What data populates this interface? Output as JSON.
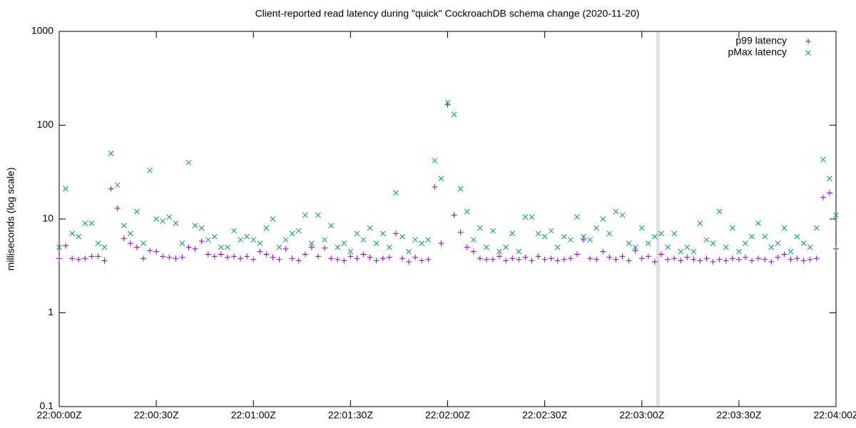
{
  "chart_data": {
    "type": "scatter",
    "title": "Client-reported read latency during \"quick\" CockroachDB schema change (2020-11-20)",
    "ylabel": "milliseconds (log scale)",
    "log_y": true,
    "legend": "top-right",
    "x": [
      0,
      2,
      4,
      6,
      8,
      10,
      12,
      14,
      16,
      18,
      20,
      22,
      24,
      26,
      28,
      30,
      32,
      34,
      36,
      38,
      40,
      42,
      44,
      46,
      48,
      50,
      52,
      54,
      56,
      58,
      60,
      62,
      64,
      66,
      68,
      70,
      72,
      74,
      76,
      78,
      80,
      82,
      84,
      86,
      88,
      90,
      92,
      94,
      96,
      98,
      100,
      102,
      104,
      106,
      108,
      110,
      112,
      114,
      116,
      118,
      120,
      122,
      124,
      126,
      128,
      130,
      132,
      134,
      136,
      138,
      140,
      142,
      144,
      146,
      148,
      150,
      152,
      154,
      156,
      158,
      160,
      162,
      164,
      166,
      168,
      170,
      172,
      174,
      176,
      178,
      180,
      182,
      184,
      186,
      188,
      190,
      192,
      194,
      196,
      198,
      200,
      202,
      204,
      206,
      208,
      210,
      212,
      214,
      216,
      218,
      220,
      222,
      224,
      226,
      228,
      230,
      232,
      234,
      236,
      238,
      240
    ],
    "series": [
      {
        "name": "p99 latency",
        "marker": "plus",
        "color": "#9400d3",
        "values": [
          3.8,
          5.2,
          3.8,
          3.7,
          3.8,
          4.0,
          4.0,
          3.6,
          21,
          13,
          6.2,
          5.5,
          5.0,
          3.8,
          4.6,
          4.5,
          4.0,
          3.9,
          3.8,
          3.9,
          5.0,
          4.8,
          5.8,
          4.2,
          4.0,
          4.2,
          3.9,
          4.0,
          3.8,
          4.0,
          3.7,
          4.5,
          4.2,
          3.9,
          3.7,
          4.8,
          3.8,
          3.6,
          4.2,
          5.0,
          4.0,
          4.9,
          3.8,
          3.7,
          3.6,
          4.0,
          3.8,
          4.2,
          3.9,
          3.6,
          3.8,
          3.9,
          7.0,
          3.8,
          3.5,
          3.9,
          3.6,
          3.7,
          22,
          5.5,
          165,
          11,
          7.2,
          5.0,
          4.5,
          3.8,
          3.7,
          3.7,
          4.0,
          3.6,
          3.8,
          3.7,
          3.9,
          3.6,
          4.0,
          3.7,
          3.8,
          3.6,
          3.7,
          3.8,
          4.2,
          6.0,
          3.8,
          3.7,
          4.5,
          3.9,
          3.7,
          4.0,
          3.6,
          4.6,
          3.8,
          4.0,
          3.5,
          4.2,
          3.7,
          3.8,
          3.6,
          3.9,
          3.7,
          3.6,
          3.8,
          3.5,
          3.7,
          3.6,
          3.8,
          3.7,
          3.9,
          3.6,
          3.8,
          3.7,
          3.5,
          3.9,
          4.2,
          3.7,
          3.8,
          3.6,
          3.7,
          3.8,
          17,
          19,
          4.8
        ]
      },
      {
        "name": "pMax latency",
        "marker": "cross",
        "color": "#009e73",
        "values": [
          5.0,
          21,
          7.0,
          6.5,
          9.0,
          9.0,
          5.5,
          5.0,
          50,
          23,
          8.5,
          7.0,
          12,
          5.5,
          33,
          10,
          9.5,
          10.5,
          9.0,
          5.5,
          40,
          8.5,
          8.0,
          6.0,
          6.5,
          5.0,
          5.0,
          7.5,
          6.0,
          6.5,
          6.0,
          5.5,
          8.0,
          10,
          5.0,
          6.0,
          7.0,
          7.5,
          11,
          5.5,
          11,
          6.0,
          8.5,
          5.0,
          5.5,
          4.5,
          7.0,
          6.0,
          8.0,
          5.5,
          7.0,
          5.0,
          19,
          6.5,
          4.5,
          6.0,
          5.5,
          6.0,
          42,
          27,
          175,
          130,
          21,
          12,
          6.0,
          8.0,
          5.0,
          7.5,
          4.5,
          5.0,
          7.0,
          4.5,
          10.5,
          10.5,
          7.0,
          6.5,
          7.5,
          5.0,
          6.5,
          6.0,
          10.5,
          6.5,
          6.0,
          8.0,
          10,
          7.0,
          12,
          11,
          5.5,
          5.0,
          8.0,
          5.5,
          6.5,
          7.0,
          5.0,
          7.0,
          4.5,
          5.0,
          4.5,
          9.0,
          6.0,
          5.5,
          12,
          5.0,
          8.0,
          4.5,
          5.5,
          6.5,
          9.0,
          6.5,
          5.0,
          5.5,
          8.0,
          4.5,
          6.5,
          5.5,
          5.0,
          8.0,
          43,
          27,
          11
        ]
      }
    ],
    "vlines": [
      {
        "x": 185,
        "color": "#e0e0e0"
      }
    ],
    "xlim": [
      0,
      240
    ],
    "xticks": [
      {
        "value": 0,
        "label": "22:00:00Z"
      },
      {
        "value": 30,
        "label": "22:00:30Z"
      },
      {
        "value": 60,
        "label": "22:01:00Z"
      },
      {
        "value": 90,
        "label": "22:01:30Z"
      },
      {
        "value": 120,
        "label": "22:02:00Z"
      },
      {
        "value": 150,
        "label": "22:02:30Z"
      },
      {
        "value": 180,
        "label": "22:03:00Z"
      },
      {
        "value": 210,
        "label": "22:03:30Z"
      },
      {
        "value": 240,
        "label": "22:04:00Z"
      }
    ],
    "ylim": [
      0.1,
      1000
    ],
    "yticks": [
      0.1,
      1,
      10,
      100,
      1000
    ]
  }
}
